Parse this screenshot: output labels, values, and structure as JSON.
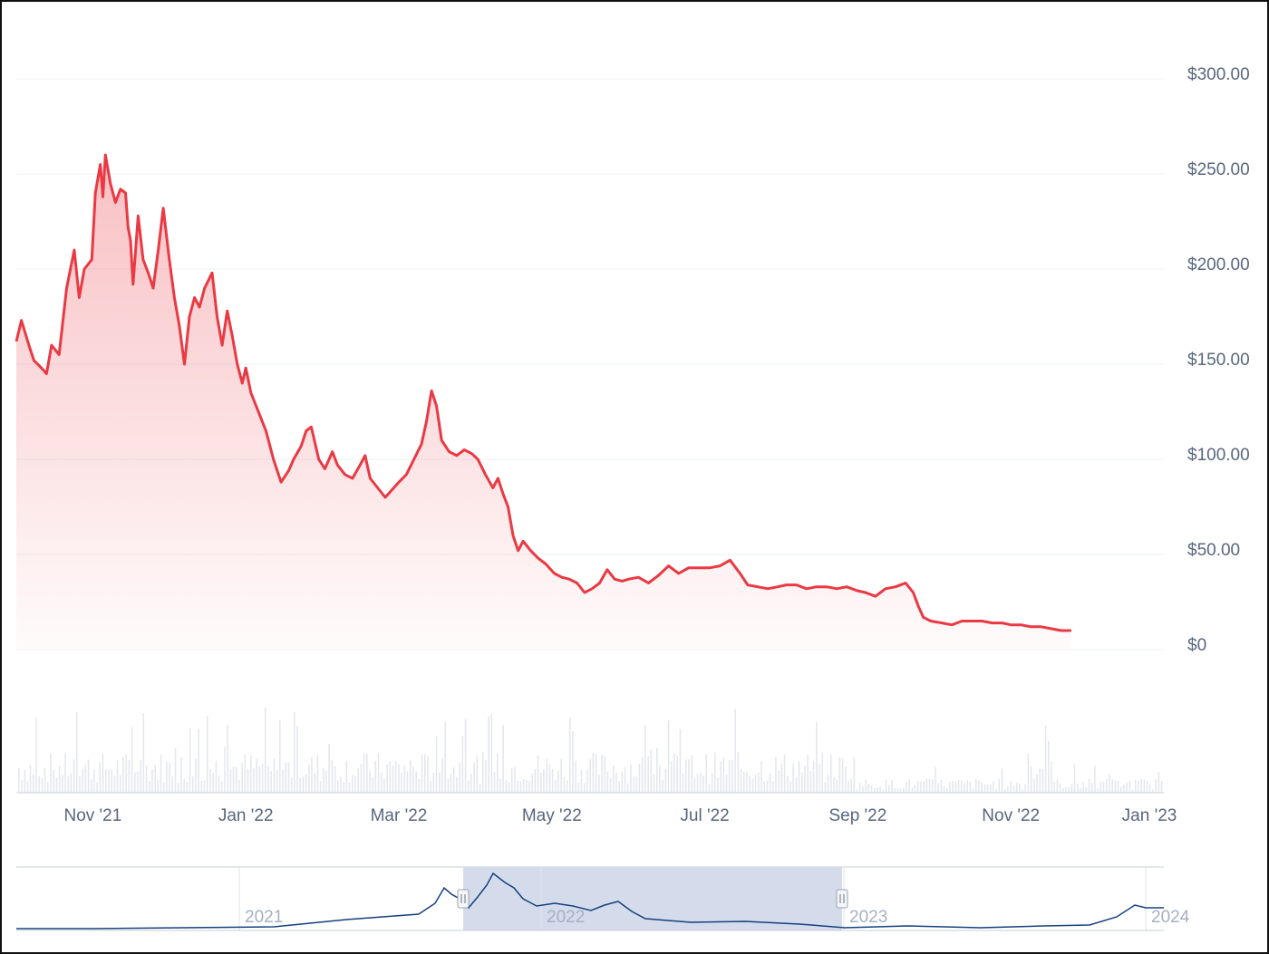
{
  "chart_data": {
    "type": "area",
    "colors": {
      "price_line": "#ea3943",
      "price_fill": "#ea3943",
      "grid": "#eef0f3",
      "volume": "#e3e6ec",
      "navigator_line": "#16407e",
      "navigator_selection": "#cfd8ea",
      "axis_text": "#58667e",
      "navigator_text": "#a6b0c3"
    },
    "y_axis": {
      "ylim": [
        0,
        300
      ],
      "tick_values": [
        0,
        50,
        100,
        150,
        200,
        250,
        300
      ],
      "tick_labels": [
        "$0",
        "$50.00",
        "$100.00",
        "$150.00",
        "$200.00",
        "$250.00",
        "$300.00"
      ],
      "position": "right"
    },
    "x_axis": {
      "range": [
        "2021-10-01",
        "2023-01-01"
      ],
      "tick_dates": [
        "2021-11-01",
        "2022-01-01",
        "2022-03-01",
        "2022-05-01",
        "2022-07-01",
        "2022-09-01",
        "2022-11-01",
        "2023-01-01"
      ],
      "tick_labels": [
        "Nov '21",
        "Jan '22",
        "Mar '22",
        "May '22",
        "Jul '22",
        "Sep '22",
        "Nov '22",
        "Jan '23"
      ]
    },
    "series": [
      {
        "type": "line",
        "points": [
          [
            "2021-10-01",
            162
          ],
          [
            "2021-10-03",
            173
          ],
          [
            "2021-10-06",
            160
          ],
          [
            "2021-10-08",
            152
          ],
          [
            "2021-10-11",
            148
          ],
          [
            "2021-10-13",
            145
          ],
          [
            "2021-10-15",
            160
          ],
          [
            "2021-10-18",
            155
          ],
          [
            "2021-10-21",
            190
          ],
          [
            "2021-10-24",
            210
          ],
          [
            "2021-10-26",
            185
          ],
          [
            "2021-10-28",
            200
          ],
          [
            "2021-10-31",
            205
          ],
          [
            "2021-11-02",
            240
          ],
          [
            "2021-11-04",
            255
          ],
          [
            "2021-11-05",
            238
          ],
          [
            "2021-11-06",
            260
          ],
          [
            "2021-11-08",
            245
          ],
          [
            "2021-11-10",
            235
          ],
          [
            "2021-11-12",
            242
          ],
          [
            "2021-11-14",
            240
          ],
          [
            "2021-11-15",
            222
          ],
          [
            "2021-11-16",
            215
          ],
          [
            "2021-11-17",
            192
          ],
          [
            "2021-11-19",
            228
          ],
          [
            "2021-11-21",
            205
          ],
          [
            "2021-11-23",
            198
          ],
          [
            "2021-11-25",
            190
          ],
          [
            "2021-11-27",
            210
          ],
          [
            "2021-11-29",
            232
          ],
          [
            "2021-12-01",
            205
          ],
          [
            "2021-12-03",
            185
          ],
          [
            "2021-12-05",
            170
          ],
          [
            "2021-12-07",
            150
          ],
          [
            "2021-12-09",
            175
          ],
          [
            "2021-12-11",
            185
          ],
          [
            "2021-12-13",
            180
          ],
          [
            "2021-12-15",
            190
          ],
          [
            "2021-12-18",
            198
          ],
          [
            "2021-12-20",
            175
          ],
          [
            "2021-12-22",
            160
          ],
          [
            "2021-12-24",
            178
          ],
          [
            "2021-12-26",
            165
          ],
          [
            "2021-12-28",
            150
          ],
          [
            "2021-12-30",
            140
          ],
          [
            "2022-01-01",
            148
          ],
          [
            "2022-01-03",
            135
          ],
          [
            "2022-01-06",
            125
          ],
          [
            "2022-01-09",
            115
          ],
          [
            "2022-01-12",
            100
          ],
          [
            "2022-01-15",
            88
          ],
          [
            "2022-01-18",
            94
          ],
          [
            "2022-01-20",
            100
          ],
          [
            "2022-01-23",
            107
          ],
          [
            "2022-01-25",
            115
          ],
          [
            "2022-01-27",
            117
          ],
          [
            "2022-01-30",
            100
          ],
          [
            "2022-02-02",
            95
          ],
          [
            "2022-02-05",
            104
          ],
          [
            "2022-02-07",
            97
          ],
          [
            "2022-02-10",
            92
          ],
          [
            "2022-02-13",
            90
          ],
          [
            "2022-02-16",
            97
          ],
          [
            "2022-02-18",
            102
          ],
          [
            "2022-02-20",
            90
          ],
          [
            "2022-02-23",
            85
          ],
          [
            "2022-02-26",
            80
          ],
          [
            "2022-03-01",
            88
          ],
          [
            "2022-03-04",
            92
          ],
          [
            "2022-03-07",
            100
          ],
          [
            "2022-03-10",
            108
          ],
          [
            "2022-03-12",
            120
          ],
          [
            "2022-03-14",
            136
          ],
          [
            "2022-03-16",
            128
          ],
          [
            "2022-03-18",
            110
          ],
          [
            "2022-03-21",
            104
          ],
          [
            "2022-03-24",
            102
          ],
          [
            "2022-03-27",
            105
          ],
          [
            "2022-03-30",
            103
          ],
          [
            "2022-04-02",
            100
          ],
          [
            "2022-04-05",
            92
          ],
          [
            "2022-04-08",
            85
          ],
          [
            "2022-04-10",
            90
          ],
          [
            "2022-04-12",
            82
          ],
          [
            "2022-04-14",
            75
          ],
          [
            "2022-04-16",
            60
          ],
          [
            "2022-04-18",
            52
          ],
          [
            "2022-04-20",
            57
          ],
          [
            "2022-04-23",
            52
          ],
          [
            "2022-04-26",
            48
          ],
          [
            "2022-04-29",
            45
          ],
          [
            "2022-05-02",
            40
          ],
          [
            "2022-05-05",
            38
          ],
          [
            "2022-05-08",
            37
          ],
          [
            "2022-05-11",
            35
          ],
          [
            "2022-05-14",
            30
          ],
          [
            "2022-05-17",
            32
          ],
          [
            "2022-05-20",
            35
          ],
          [
            "2022-05-23",
            42
          ],
          [
            "2022-05-26",
            37
          ],
          [
            "2022-05-29",
            36
          ],
          [
            "2022-06-01",
            37
          ],
          [
            "2022-06-05",
            38
          ],
          [
            "2022-06-09",
            35
          ],
          [
            "2022-06-13",
            39
          ],
          [
            "2022-06-17",
            44
          ],
          [
            "2022-06-21",
            40
          ],
          [
            "2022-06-25",
            43
          ],
          [
            "2022-06-29",
            43
          ],
          [
            "2022-07-03",
            43
          ],
          [
            "2022-07-07",
            44
          ],
          [
            "2022-07-11",
            47
          ],
          [
            "2022-07-15",
            40
          ],
          [
            "2022-07-18",
            34
          ],
          [
            "2022-07-22",
            33
          ],
          [
            "2022-07-26",
            32
          ],
          [
            "2022-07-30",
            33
          ],
          [
            "2022-08-03",
            34
          ],
          [
            "2022-08-07",
            34
          ],
          [
            "2022-08-11",
            32
          ],
          [
            "2022-08-15",
            33
          ],
          [
            "2022-08-19",
            33
          ],
          [
            "2022-08-23",
            32
          ],
          [
            "2022-08-27",
            33
          ],
          [
            "2022-08-31",
            31
          ],
          [
            "2022-09-04",
            30
          ],
          [
            "2022-09-08",
            28
          ],
          [
            "2022-09-12",
            32
          ],
          [
            "2022-09-16",
            33
          ],
          [
            "2022-09-20",
            35
          ],
          [
            "2022-09-23",
            30
          ],
          [
            "2022-09-25",
            23
          ],
          [
            "2022-09-27",
            17
          ],
          [
            "2022-09-30",
            15
          ],
          [
            "2022-10-04",
            14
          ],
          [
            "2022-10-08",
            13
          ],
          [
            "2022-10-12",
            15
          ],
          [
            "2022-10-16",
            15
          ],
          [
            "2022-10-20",
            15
          ],
          [
            "2022-10-24",
            14
          ],
          [
            "2022-10-28",
            14
          ],
          [
            "2022-11-01",
            13
          ],
          [
            "2022-11-05",
            13
          ],
          [
            "2022-11-09",
            12
          ],
          [
            "2022-11-13",
            12
          ],
          [
            "2022-11-17",
            11
          ],
          [
            "2022-11-21",
            10
          ],
          [
            "2022-11-25",
            10
          ]
        ]
      }
    ],
    "volume": {
      "visible": true,
      "values": []
    },
    "navigator": {
      "year_labels": [
        "2021",
        "2022",
        "2023",
        "2024"
      ],
      "selection": [
        "2021-10-01",
        "2023-01-01"
      ]
    }
  }
}
